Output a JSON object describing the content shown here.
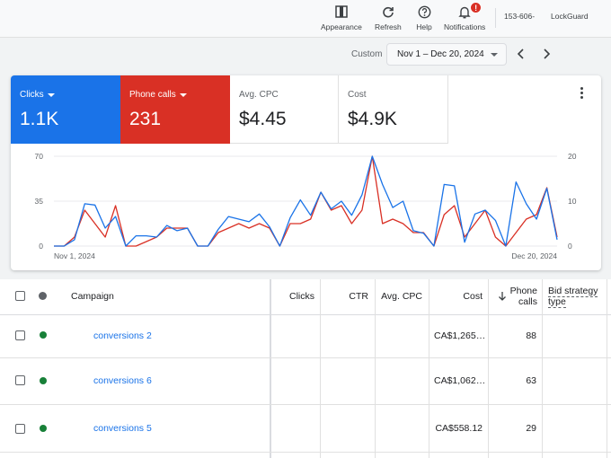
{
  "toolbar": {
    "appearance": "Appearance",
    "refresh": "Refresh",
    "help": "Help",
    "notifications": "Notifications",
    "notification_badge": "!",
    "account_id": "153-606-",
    "account_name": "LockGuard"
  },
  "date_range": {
    "label": "Custom",
    "value": "Nov 1 – Dec 20, 2024"
  },
  "metrics": {
    "clicks": {
      "label": "Clicks",
      "value": "1.1K"
    },
    "phone_calls": {
      "label": "Phone calls",
      "value": "231"
    },
    "avg_cpc": {
      "label": "Avg. CPC",
      "value": "$4.45"
    },
    "cost": {
      "label": "Cost",
      "value": "$4.9K"
    }
  },
  "chart_data": {
    "type": "line",
    "x_start_label": "Nov 1, 2024",
    "x_end_label": "Dec 20, 2024",
    "left_axis": {
      "ticks": [
        "70",
        "35",
        "0"
      ],
      "ylim": [
        0,
        70
      ]
    },
    "right_axis": {
      "ticks": [
        "20",
        "10",
        "0"
      ],
      "ylim": [
        0,
        20
      ]
    },
    "series": [
      {
        "name": "Clicks",
        "axis": "left",
        "color": "#1a73e8",
        "values": [
          0,
          0,
          5,
          33,
          32,
          14,
          23,
          0,
          8,
          8,
          7,
          16,
          12,
          14,
          0,
          0,
          13,
          23,
          21,
          19,
          25,
          15,
          0,
          22,
          36,
          24,
          42,
          29,
          35,
          24,
          40,
          70,
          48,
          30,
          35,
          12,
          10,
          0,
          48,
          47,
          3,
          25,
          28,
          20,
          0,
          50,
          33,
          21,
          45,
          5
        ]
      },
      {
        "name": "Phone calls",
        "axis": "right",
        "color": "#d93025",
        "values": [
          0,
          0,
          2,
          8,
          5,
          2,
          9,
          0,
          0,
          1,
          2,
          4,
          4,
          4,
          0,
          0,
          3,
          4,
          5,
          4,
          5,
          4,
          0,
          5,
          5,
          6,
          12,
          8,
          9,
          5,
          8,
          20,
          5,
          6,
          5,
          3,
          3,
          0,
          7,
          9,
          2,
          5,
          8,
          2,
          0,
          3,
          6,
          7,
          13,
          2
        ]
      }
    ]
  },
  "table": {
    "headers": {
      "campaign": "Campaign",
      "clicks": "Clicks",
      "ctr": "CTR",
      "avg_cpc": "Avg. CPC",
      "cost": "Cost",
      "phone_calls_l1": "Phone",
      "phone_calls_l2": "calls",
      "bid_l1": "Bid strategy",
      "bid_l2": "type"
    },
    "rows": [
      {
        "campaign": "conversions 2",
        "cost": "CA$1,265…",
        "phone_calls": "88"
      },
      {
        "campaign": "conversions 6",
        "cost": "CA$1,062…",
        "phone_calls": "63"
      },
      {
        "campaign": "conversions 5",
        "cost": "CA$558.12",
        "phone_calls": "29"
      }
    ]
  }
}
